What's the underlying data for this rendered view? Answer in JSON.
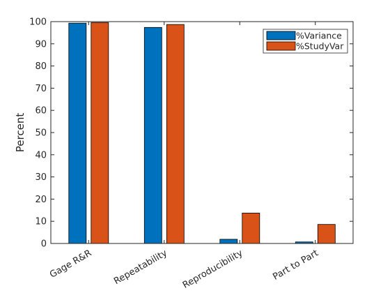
{
  "chart_data": {
    "type": "bar",
    "title": "",
    "xlabel": "",
    "ylabel": "Percent",
    "ylim": [
      0,
      100
    ],
    "yticks": [
      0,
      10,
      20,
      30,
      40,
      50,
      60,
      70,
      80,
      90,
      100
    ],
    "categories": [
      "Gage R&R",
      "Repeatability",
      "Reproducibility",
      "Part to Part"
    ],
    "series": [
      {
        "name": "%Variance",
        "color": "#0072BD",
        "values": [
          99.3,
          97.4,
          1.9,
          0.7
        ]
      },
      {
        "name": "%StudyVar",
        "color": "#D95319",
        "values": [
          99.6,
          98.7,
          13.7,
          8.6
        ]
      }
    ],
    "legend_position": "top-right",
    "grid": false
  }
}
